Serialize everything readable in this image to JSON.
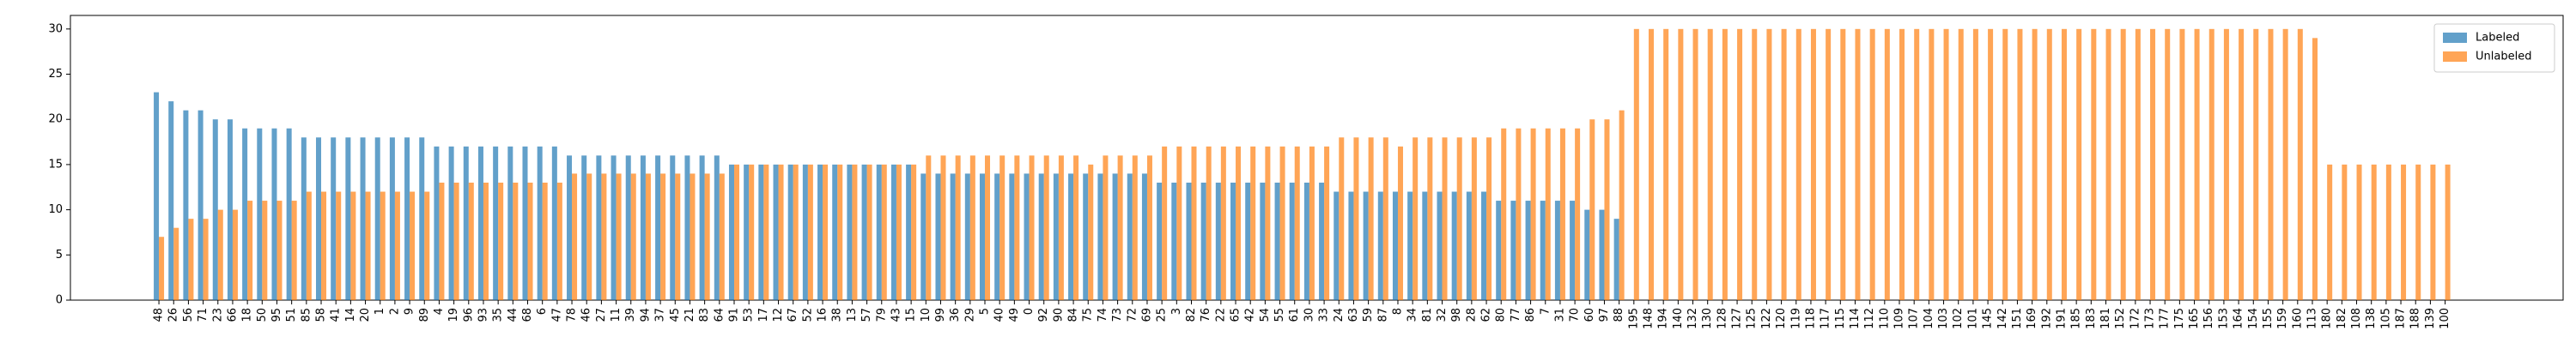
{
  "chart_data": {
    "type": "bar",
    "categories": [
      "48",
      "26",
      "56",
      "71",
      "23",
      "66",
      "18",
      "50",
      "95",
      "51",
      "85",
      "58",
      "41",
      "14",
      "20",
      "1",
      "2",
      "9",
      "89",
      "4",
      "19",
      "96",
      "93",
      "35",
      "44",
      "68",
      "6",
      "47",
      "78",
      "46",
      "27",
      "11",
      "39",
      "94",
      "37",
      "45",
      "21",
      "83",
      "64",
      "91",
      "53",
      "17",
      "12",
      "67",
      "52",
      "16",
      "38",
      "13",
      "57",
      "79",
      "43",
      "15",
      "10",
      "99",
      "36",
      "29",
      "5",
      "40",
      "49",
      "0",
      "92",
      "90",
      "84",
      "75",
      "74",
      "73",
      "72",
      "69",
      "25",
      "3",
      "82",
      "76",
      "22",
      "65",
      "42",
      "54",
      "55",
      "61",
      "30",
      "33",
      "24",
      "63",
      "59",
      "87",
      "8",
      "34",
      "81",
      "32",
      "98",
      "28",
      "62",
      "80",
      "77",
      "86",
      "7",
      "31",
      "70",
      "60",
      "97",
      "88",
      "195",
      "148",
      "194",
      "140",
      "132",
      "130",
      "128",
      "127",
      "125",
      "122",
      "120",
      "119",
      "118",
      "117",
      "115",
      "114",
      "112",
      "110",
      "109",
      "107",
      "104",
      "103",
      "102",
      "101",
      "145",
      "142",
      "151",
      "169",
      "192",
      "191",
      "185",
      "183",
      "181",
      "152",
      "172",
      "173",
      "177",
      "175",
      "165",
      "156",
      "153",
      "164",
      "154",
      "155",
      "159",
      "160",
      "113",
      "180",
      "182",
      "108",
      "138",
      "105",
      "187",
      "188",
      "139",
      "100"
    ],
    "series": [
      {
        "name": "Labeled",
        "color": "#1f77b4",
        "values": [
          23,
          22,
          21,
          21,
          20,
          20,
          19,
          19,
          19,
          19,
          18,
          18,
          18,
          18,
          18,
          18,
          18,
          18,
          18,
          17,
          17,
          17,
          17,
          17,
          17,
          17,
          17,
          17,
          16,
          16,
          16,
          16,
          16,
          16,
          16,
          16,
          16,
          16,
          16,
          15,
          15,
          15,
          15,
          15,
          15,
          15,
          15,
          15,
          15,
          15,
          15,
          15,
          14,
          14,
          14,
          14,
          14,
          14,
          14,
          14,
          14,
          14,
          14,
          14,
          14,
          14,
          14,
          14,
          13,
          13,
          13,
          13,
          13,
          13,
          13,
          13,
          13,
          13,
          13,
          13,
          12,
          12,
          12,
          12,
          12,
          12,
          12,
          12,
          12,
          12,
          12,
          11,
          11,
          11,
          11,
          11,
          11,
          10,
          10,
          9,
          null,
          null,
          null,
          null,
          null,
          null,
          null,
          null,
          null,
          null,
          null,
          null,
          null,
          null,
          null,
          null,
          null,
          null,
          null,
          null,
          null,
          null,
          null,
          null,
          null,
          null,
          null,
          null,
          null,
          null,
          null,
          null,
          null,
          null,
          null,
          null,
          null,
          null,
          null,
          null,
          null,
          null,
          null,
          null,
          null,
          null,
          null,
          null,
          null,
          null,
          null,
          null,
          null,
          null,
          null,
          null
        ]
      },
      {
        "name": "Unlabeled",
        "color": "#ff7f0e",
        "values": [
          7,
          8,
          9,
          9,
          10,
          10,
          11,
          11,
          11,
          11,
          12,
          12,
          12,
          12,
          12,
          12,
          12,
          12,
          12,
          13,
          13,
          13,
          13,
          13,
          13,
          13,
          13,
          13,
          14,
          14,
          14,
          14,
          14,
          14,
          14,
          14,
          14,
          14,
          14,
          15,
          15,
          15,
          15,
          15,
          15,
          15,
          15,
          15,
          15,
          15,
          15,
          15,
          16,
          16,
          16,
          16,
          16,
          16,
          16,
          16,
          16,
          16,
          16,
          15,
          16,
          16,
          16,
          16,
          17,
          17,
          17,
          17,
          17,
          17,
          17,
          17,
          17,
          17,
          17,
          17,
          18,
          18,
          18,
          18,
          17,
          18,
          18,
          18,
          18,
          18,
          18,
          19,
          19,
          19,
          19,
          19,
          19,
          20,
          20,
          21,
          30,
          30,
          30,
          30,
          30,
          30,
          30,
          30,
          30,
          30,
          30,
          30,
          30,
          30,
          30,
          30,
          30,
          30,
          30,
          30,
          30,
          30,
          30,
          30,
          30,
          30,
          30,
          30,
          30,
          30,
          30,
          30,
          30,
          30,
          30,
          30,
          30,
          30,
          30,
          30,
          30,
          30,
          30,
          30,
          30,
          30,
          29,
          15,
          15,
          15,
          15,
          15,
          15,
          15,
          15,
          15
        ]
      }
    ],
    "ylim": [
      0,
      31.5
    ],
    "yticks": [
      0,
      5,
      10,
      15,
      20,
      25,
      30
    ],
    "legend": "upper right"
  }
}
